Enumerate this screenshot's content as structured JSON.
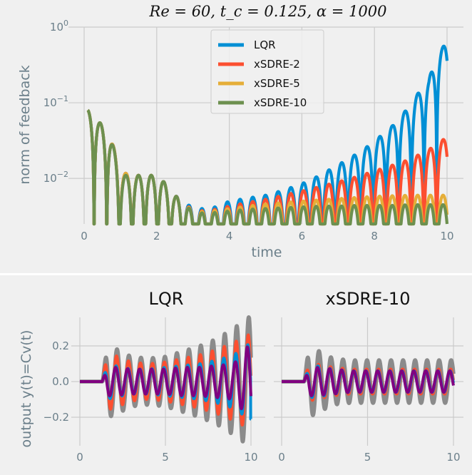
{
  "chart_data": [
    {
      "type": "line",
      "title": "Re = 60,    t_c = 0.125,    α = 1000",
      "xlabel": "time",
      "ylabel": "norm of feedback",
      "yscale": "log",
      "xlim": [
        -0.5,
        10.5
      ],
      "ylim": [
        0.0025,
        1.0
      ],
      "xticks": [
        "0",
        "2",
        "4",
        "6",
        "8",
        "10"
      ],
      "yticks": [
        {
          "value": 1.0,
          "base": "10",
          "exp": "0"
        },
        {
          "value": 0.1,
          "base": "10",
          "exp": "−1"
        },
        {
          "value": 0.01,
          "base": "10",
          "exp": "−2"
        }
      ],
      "grid": true,
      "legend_position": "top-center",
      "series": [
        {
          "name": "LQR",
          "color": "#008fd5",
          "envelope_t": [
            0.1,
            0.5,
            1,
            1.5,
            2,
            2.5,
            3,
            3.5,
            4,
            4.5,
            5,
            5.5,
            6,
            6.5,
            7,
            7.5,
            8,
            8.5,
            9,
            9.5,
            10
          ],
          "envelope_y": [
            0.08,
            0.05,
            0.012,
            0.011,
            0.011,
            0.006,
            0.004,
            0.004,
            0.005,
            0.0055,
            0.006,
            0.007,
            0.0085,
            0.011,
            0.015,
            0.021,
            0.03,
            0.05,
            0.09,
            0.2,
            0.65
          ]
        },
        {
          "name": "xSDRE-2",
          "color": "#fc4f30",
          "envelope_t": [
            0.1,
            0.5,
            1,
            1.5,
            2,
            2.5,
            3,
            3.5,
            4,
            4.5,
            5,
            5.5,
            6,
            6.5,
            7,
            7.5,
            8,
            8.5,
            9,
            9.5,
            10
          ],
          "envelope_y": [
            0.08,
            0.05,
            0.012,
            0.011,
            0.011,
            0.006,
            0.0037,
            0.0038,
            0.0043,
            0.0048,
            0.0053,
            0.006,
            0.0068,
            0.0078,
            0.009,
            0.0105,
            0.0125,
            0.015,
            0.018,
            0.024,
            0.035
          ]
        },
        {
          "name": "xSDRE-5",
          "color": "#e5ae38",
          "envelope_t": [
            0.1,
            0.5,
            1,
            1.5,
            2,
            2.5,
            3,
            3.5,
            4,
            4.5,
            5,
            5.5,
            6,
            6.5,
            7,
            7.5,
            8,
            8.5,
            9,
            9.5,
            10
          ],
          "envelope_y": [
            0.08,
            0.05,
            0.012,
            0.011,
            0.011,
            0.006,
            0.0036,
            0.0037,
            0.004,
            0.0043,
            0.0046,
            0.0048,
            0.005,
            0.0052,
            0.0054,
            0.0056,
            0.0058,
            0.0059,
            0.006,
            0.006,
            0.006
          ]
        },
        {
          "name": "xSDRE-10",
          "color": "#6d904f",
          "envelope_t": [
            0.1,
            0.5,
            1,
            1.5,
            2,
            2.5,
            3,
            3.5,
            4,
            4.5,
            5,
            5.5,
            6,
            6.5,
            7,
            7.5,
            8,
            8.5,
            9,
            9.5,
            10
          ],
          "envelope_y": [
            0.08,
            0.05,
            0.011,
            0.011,
            0.011,
            0.006,
            0.0035,
            0.0035,
            0.0037,
            0.0039,
            0.004,
            0.0041,
            0.0042,
            0.0043,
            0.0043,
            0.0044,
            0.0044,
            0.0044,
            0.0045,
            0.0045,
            0.0045
          ]
        }
      ]
    },
    {
      "type": "line",
      "title": "LQR",
      "ylabel": "output y(t)=Cv(t)",
      "xlim": [
        -0.5,
        10.5
      ],
      "ylim": [
        -0.36,
        0.38
      ],
      "xticks": [
        "0",
        "5",
        "10"
      ],
      "yticks": [
        "0.2",
        "0.0",
        "−0.2"
      ],
      "grid": true,
      "series": [
        {
          "color": "#8b8b8b",
          "amplitude_t": [
            0,
            1.3,
            1.6,
            2,
            3,
            4,
            5,
            6,
            7,
            8,
            9,
            10
          ],
          "amplitude": [
            0,
            0,
            0.2,
            0.19,
            0.14,
            0.13,
            0.14,
            0.17,
            0.2,
            0.24,
            0.3,
            0.37
          ]
        },
        {
          "color": "#fc4f30",
          "amplitude_t": [
            0,
            1.3,
            1.6,
            2,
            3,
            4,
            5,
            6,
            7,
            8,
            9,
            10
          ],
          "amplitude": [
            0,
            0,
            0.16,
            0.15,
            0.11,
            0.1,
            0.11,
            0.13,
            0.15,
            0.18,
            0.22,
            0.27
          ]
        },
        {
          "color": "#008fd5",
          "amplitude_t": [
            0,
            1.3,
            1.6,
            2,
            3,
            4,
            5,
            6,
            7,
            8,
            9,
            10
          ],
          "amplitude": [
            0,
            0,
            0.1,
            0.09,
            0.07,
            0.07,
            0.08,
            0.09,
            0.1,
            0.12,
            0.15,
            0.22
          ]
        },
        {
          "color": "#800080",
          "amplitude_t": [
            0,
            1.3,
            1.6,
            2,
            3,
            4,
            5,
            6,
            7,
            8,
            9,
            10
          ],
          "amplitude": [
            0,
            0,
            0.08,
            0.08,
            0.07,
            0.07,
            0.07,
            0.08,
            0.08,
            0.09,
            0.1,
            0.22
          ]
        }
      ]
    },
    {
      "type": "line",
      "title": "xSDRE-10",
      "xlim": [
        -0.5,
        10.5
      ],
      "ylim": [
        -0.36,
        0.38
      ],
      "xticks": [
        "0",
        "5",
        "10"
      ],
      "grid": true,
      "series": [
        {
          "color": "#8b8b8b",
          "amplitude_t": [
            0,
            1.3,
            1.6,
            2,
            3,
            4,
            5,
            6,
            7,
            8,
            9,
            10
          ],
          "amplitude": [
            0,
            0,
            0.2,
            0.18,
            0.13,
            0.12,
            0.12,
            0.12,
            0.12,
            0.12,
            0.12,
            0.12
          ]
        },
        {
          "color": "#fc4f30",
          "amplitude_t": [
            0,
            1.3,
            1.6,
            2,
            3,
            4,
            5,
            6,
            7,
            8,
            9,
            10
          ],
          "amplitude": [
            0,
            0,
            0.11,
            0.1,
            0.08,
            0.07,
            0.07,
            0.07,
            0.07,
            0.07,
            0.07,
            0.07
          ]
        },
        {
          "color": "#008fd5",
          "amplitude_t": [
            0,
            1.3,
            1.6,
            2,
            3,
            4,
            5,
            6,
            7,
            8,
            9,
            10
          ],
          "amplitude": [
            0,
            0,
            0.09,
            0.09,
            0.07,
            0.06,
            0.06,
            0.06,
            0.06,
            0.06,
            0.06,
            0.06
          ]
        },
        {
          "color": "#800080",
          "amplitude_t": [
            0,
            1.3,
            1.6,
            2,
            3,
            4,
            5,
            6,
            7,
            8,
            9,
            10
          ],
          "amplitude": [
            0,
            0,
            0.08,
            0.08,
            0.07,
            0.06,
            0.06,
            0.06,
            0.06,
            0.06,
            0.06,
            0.06
          ]
        }
      ]
    }
  ],
  "colors": {
    "figure_bg": "#ffffff",
    "axes_bg": "#f0f0f0",
    "grid": "#cbcbcb",
    "tick_text": "#6b7f8a",
    "title_text": "#111111"
  }
}
